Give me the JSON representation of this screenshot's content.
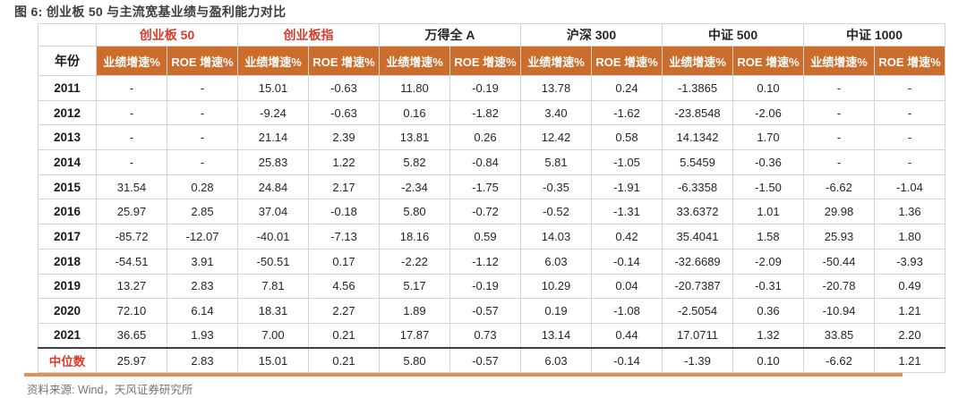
{
  "title": "图 6: 创业板 50 与主流宽基业绩与盈利能力对比",
  "source_note": "资料来源: Wind，天风证券研究所",
  "colors": {
    "header_bg": "#cb6e2d",
    "header_text": "#ffffff",
    "highlight_red": "#d93b2a",
    "grid_border": "#d4d4d4",
    "median_divider": "#3f3f3f",
    "accent_bar": "#e09355",
    "source_text": "#757575"
  },
  "chart_data": {
    "type": "table",
    "title": "图 6: 创业板 50 与主流宽基业绩与盈利能力对比",
    "year_header": "年份",
    "groups": [
      {
        "label": "创业板 50",
        "highlight": true
      },
      {
        "label": "创业板指",
        "highlight": true
      },
      {
        "label": "万得全 A",
        "highlight": false
      },
      {
        "label": "沪深 300",
        "highlight": false
      },
      {
        "label": "中证 500",
        "highlight": false
      },
      {
        "label": "中证 1000",
        "highlight": false
      }
    ],
    "sub_headers": [
      "业绩增速%",
      "ROE 增速%"
    ],
    "rows": [
      {
        "year": "2011",
        "median": false,
        "values": [
          "-",
          "-",
          "15.01",
          "-0.63",
          "11.80",
          "-0.19",
          "13.78",
          "0.24",
          "-1.3865",
          "0.10",
          "-",
          "-"
        ]
      },
      {
        "year": "2012",
        "median": false,
        "values": [
          "-",
          "-",
          "-9.24",
          "-0.63",
          "0.16",
          "-1.82",
          "3.40",
          "-1.62",
          "-23.8548",
          "-2.06",
          "-",
          "-"
        ]
      },
      {
        "year": "2013",
        "median": false,
        "values": [
          "-",
          "-",
          "21.14",
          "2.39",
          "13.81",
          "0.26",
          "12.42",
          "0.58",
          "14.1342",
          "1.70",
          "-",
          "-"
        ]
      },
      {
        "year": "2014",
        "median": false,
        "values": [
          "-",
          "-",
          "25.83",
          "1.22",
          "5.82",
          "-0.84",
          "5.81",
          "-1.05",
          "5.5459",
          "-0.36",
          "-",
          "-"
        ]
      },
      {
        "year": "2015",
        "median": false,
        "values": [
          "31.54",
          "0.28",
          "24.84",
          "2.17",
          "-2.34",
          "-1.75",
          "-0.35",
          "-1.91",
          "-6.3358",
          "-1.50",
          "-6.62",
          "-1.04"
        ]
      },
      {
        "year": "2016",
        "median": false,
        "values": [
          "25.97",
          "2.85",
          "37.04",
          "-0.18",
          "5.80",
          "-0.72",
          "-0.52",
          "-1.31",
          "33.6372",
          "1.01",
          "29.98",
          "1.36"
        ]
      },
      {
        "year": "2017",
        "median": false,
        "values": [
          "-85.72",
          "-12.07",
          "-40.01",
          "-7.13",
          "18.16",
          "0.59",
          "14.03",
          "0.42",
          "35.4041",
          "1.58",
          "25.93",
          "1.80"
        ]
      },
      {
        "year": "2018",
        "median": false,
        "values": [
          "-54.51",
          "3.91",
          "-50.51",
          "0.17",
          "-2.22",
          "-1.12",
          "6.03",
          "-0.14",
          "-32.6689",
          "-2.09",
          "-50.44",
          "-3.93"
        ]
      },
      {
        "year": "2019",
        "median": false,
        "values": [
          "13.27",
          "2.83",
          "7.81",
          "4.56",
          "5.17",
          "-0.19",
          "10.29",
          "0.04",
          "-20.7387",
          "-0.31",
          "-20.78",
          "0.49"
        ]
      },
      {
        "year": "2020",
        "median": false,
        "values": [
          "72.10",
          "6.14",
          "18.31",
          "2.27",
          "1.89",
          "-0.57",
          "0.19",
          "-1.08",
          "-2.5054",
          "0.36",
          "-10.94",
          "1.21"
        ]
      },
      {
        "year": "2021",
        "median": false,
        "values": [
          "36.65",
          "1.93",
          "7.00",
          "0.21",
          "17.87",
          "0.73",
          "13.14",
          "0.44",
          "17.0711",
          "1.32",
          "33.85",
          "2.20"
        ]
      },
      {
        "year": "中位数",
        "median": true,
        "values": [
          "25.97",
          "2.83",
          "15.01",
          "0.21",
          "5.80",
          "-0.57",
          "6.03",
          "-0.14",
          "-1.39",
          "0.10",
          "-6.62",
          "1.21"
        ]
      }
    ]
  }
}
